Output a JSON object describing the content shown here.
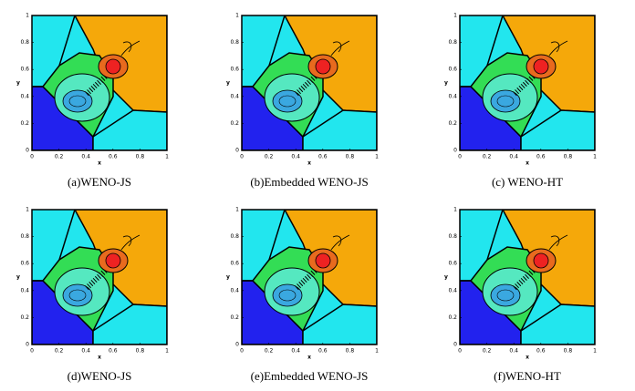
{
  "panels": [
    {
      "caption": "(a)WENO-JS",
      "x_label": "x",
      "y_label": "y",
      "x_ticks": [
        0,
        0.2,
        0.4,
        0.6,
        0.8,
        1
      ],
      "y_ticks": [
        0,
        0.2,
        0.4,
        0.6,
        0.8,
        1
      ]
    },
    {
      "caption": "(b)Embedded WENO-JS",
      "x_label": "x",
      "y_label": "y",
      "x_ticks": [
        0,
        0.2,
        0.4,
        0.6,
        0.8,
        1
      ],
      "y_ticks": [
        0,
        0.2,
        0.4,
        0.6,
        0.8,
        1
      ]
    },
    {
      "caption": "(c) WENO-HT",
      "x_label": "x",
      "y_label": "y",
      "x_ticks": [
        0,
        0.2,
        0.4,
        0.6,
        0.8,
        1
      ],
      "y_ticks": [
        0,
        0.2,
        0.4,
        0.6,
        0.8,
        1
      ]
    },
    {
      "caption": "(d)WENO-JS",
      "x_label": "x",
      "y_label": "y",
      "x_ticks": [
        0,
        0.2,
        0.4,
        0.6,
        0.8,
        1
      ],
      "y_ticks": [
        0,
        0.2,
        0.4,
        0.6,
        0.8,
        1
      ]
    },
    {
      "caption": "(e)Embedded WENO-JS",
      "x_label": "x",
      "y_label": "y",
      "x_ticks": [
        0,
        0.2,
        0.4,
        0.6,
        0.8,
        1
      ],
      "y_ticks": [
        0,
        0.2,
        0.4,
        0.6,
        0.8,
        1
      ]
    },
    {
      "caption": "(f)WENO-HT",
      "x_label": "x",
      "y_label": "y",
      "x_ticks": [
        0,
        0.2,
        0.4,
        0.6,
        0.8,
        1
      ],
      "y_ticks": [
        0,
        0.2,
        0.4,
        0.6,
        0.8,
        1
      ]
    }
  ]
}
